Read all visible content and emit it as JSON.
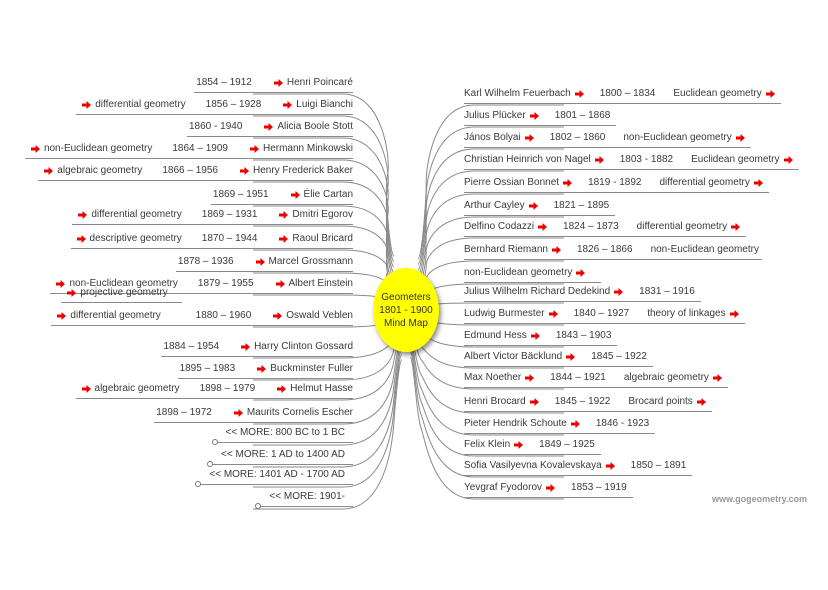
{
  "center": {
    "line1": "Geometers",
    "line2": "1801 - 1900",
    "line3": "Mind Map",
    "color": "#ffff00"
  },
  "arrow_color": "#ee0000",
  "watermark": "www.gogeometry.com",
  "left": [
    {
      "name": "Henri Poincaré",
      "dates": "1854 – 1912",
      "topics": []
    },
    {
      "name": "Luigi Bianchi",
      "dates": "1856 – 1928",
      "topics": [
        "differential geometry"
      ]
    },
    {
      "name": "Alicia Boole Stott",
      "dates": "1860 - 1940",
      "topics": []
    },
    {
      "name": "Hermann Minkowski",
      "dates": "1864 – 1909",
      "topics": [
        "non-Euclidean geometry"
      ]
    },
    {
      "name": "Henry Frederick Baker",
      "dates": "1866 – 1956",
      "topics": [
        "algebraic geometry"
      ]
    },
    {
      "name": "Élie Cartan",
      "dates": "1869 – 1951",
      "topics": []
    },
    {
      "name": "Dmitri Egorov",
      "dates": "1869 – 1931",
      "topics": [
        "differential geometry"
      ]
    },
    {
      "name": "Raoul Bricard",
      "dates": "1870 – 1944",
      "topics": [
        "descriptive geometry"
      ]
    },
    {
      "name": "Marcel Grossmann",
      "dates": "1878 – 1936",
      "topics": []
    },
    {
      "name": "Albert Einstein",
      "dates": "1879 – 1955",
      "topics": [
        "non-Euclidean geometry"
      ]
    },
    {
      "name": "Oswald Veblen",
      "dates": "1880 – 1960",
      "topics": [
        "projective geometry",
        "differential geometry"
      ]
    },
    {
      "name": "Harry Clinton Gossard",
      "dates": "1884 – 1954",
      "topics": []
    },
    {
      "name": "Buckminster Fuller",
      "dates": "1895 – 1983",
      "topics": []
    },
    {
      "name": "Helmut Hasse",
      "dates": "1898 – 1979",
      "topics": [
        "algebraic geometry"
      ]
    },
    {
      "name": "Maurits Cornelis Escher",
      "dates": "1898 – 1972",
      "topics": []
    }
  ],
  "more_links": [
    "<< MORE: 800 BC to 1 BC",
    "<< MORE: 1 AD to 1400 AD",
    "<< MORE: 1401 AD - 1700 AD",
    "<< MORE: 1901-"
  ],
  "right": [
    {
      "name": "Karl Wilhelm Feuerbach",
      "dates": "1800 – 1834",
      "topic": "Euclidean geometry"
    },
    {
      "name": "Julius Plücker",
      "dates": "1801 – 1868",
      "topic": ""
    },
    {
      "name": "János Bolyai",
      "dates": "1802 – 1860",
      "topic": "non-Euclidean geometry"
    },
    {
      "name": "Christian Heinrich von Nagel",
      "dates": "1803 - 1882",
      "topic": "Euclidean geometry"
    },
    {
      "name": "Pierre Ossian Bonnet",
      "dates": "1819 - 1892",
      "topic": "differential geometry"
    },
    {
      "name": "Arthur Cayley",
      "dates": "1821 – 1895",
      "topic": ""
    },
    {
      "name": "Delfino Codazzi",
      "dates": "1824 – 1873",
      "topic": "differential geometry"
    },
    {
      "name": "Bernhard Riemann",
      "dates": "1826 – 1866",
      "topic": "non-Euclidean geometry",
      "topic_no_arrow": true
    },
    {
      "name": "non-Euclidean geometry",
      "dates": "",
      "topic": ""
    },
    {
      "name": "Julius Wilhelm Richard Dedekind",
      "dates": "1831 – 1916",
      "topic": ""
    },
    {
      "name": "Ludwig Burmester",
      "dates": "1840 – 1927",
      "topic": "theory of linkages"
    },
    {
      "name": "Edmund Hess",
      "dates": "1843 – 1903",
      "topic": ""
    },
    {
      "name": "Albert Victor Bäcklund",
      "dates": "1845 – 1922",
      "topic": ""
    },
    {
      "name": "Max Noether",
      "dates": "1844 – 1921",
      "topic": "algebraic geometry"
    },
    {
      "name": "Henri Brocard",
      "dates": "1845 – 1922",
      "topic": "Brocard points"
    },
    {
      "name": "Pieter Hendrik Schoute",
      "dates": "1846 - 1923",
      "topic": ""
    },
    {
      "name": "Felix Klein",
      "dates": "1849 – 1925",
      "topic": ""
    },
    {
      "name": "Sofia Vasilyevna Kovalevskaya",
      "dates": "1850 – 1891",
      "topic": ""
    },
    {
      "name": "Yevgraf Fyodorov",
      "dates": "1853 – 1919",
      "topic": ""
    }
  ]
}
